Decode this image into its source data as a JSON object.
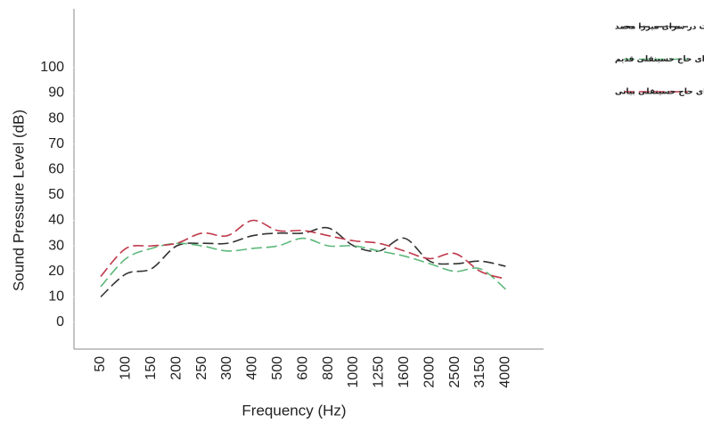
{
  "chart_data": {
    "type": "line",
    "x_label": "Frequency (Hz)",
    "y_label": "Sound Pressure Level (dB)",
    "categories": [
      "50",
      "100",
      "150",
      "200",
      "250",
      "300",
      "400",
      "500",
      "600",
      "800",
      "1000",
      "1250",
      "1600",
      "2000",
      "2500",
      "3150",
      "4000"
    ],
    "series": [
      {
        "name": "میانگین مقادیر کمینه تراز فشار صوت در سرای میرزا محمد",
        "color": "#333333",
        "values": [
          10,
          19,
          21,
          30,
          31,
          31,
          34,
          35,
          35,
          37,
          30,
          28,
          33,
          24,
          23,
          24,
          22
        ]
      },
      {
        "name": "میانگین مقادیر کمینه تراز فشار صوت در سرای حاج حسینقلی قدیم",
        "color": "#5cb87a",
        "values": [
          14,
          25,
          29,
          31,
          30,
          28,
          29,
          30,
          33,
          30,
          30,
          28,
          26,
          23,
          20,
          21,
          13
        ]
      },
      {
        "name": "میانگین مقادیر کمینه تراز فشار صوت در سرای حاج حسینقلی بیانی",
        "color": "#c0394b",
        "values": [
          18,
          29,
          30,
          31,
          35,
          34,
          40,
          36,
          36,
          34,
          32,
          31,
          28,
          25,
          27,
          20,
          17
        ]
      }
    ],
    "ylim": [
      -10.5,
      123
    ],
    "yticks": [
      0,
      10,
      20,
      30,
      40,
      50,
      60,
      70,
      80,
      90,
      100
    ],
    "grid": false,
    "legend": "upper right"
  }
}
